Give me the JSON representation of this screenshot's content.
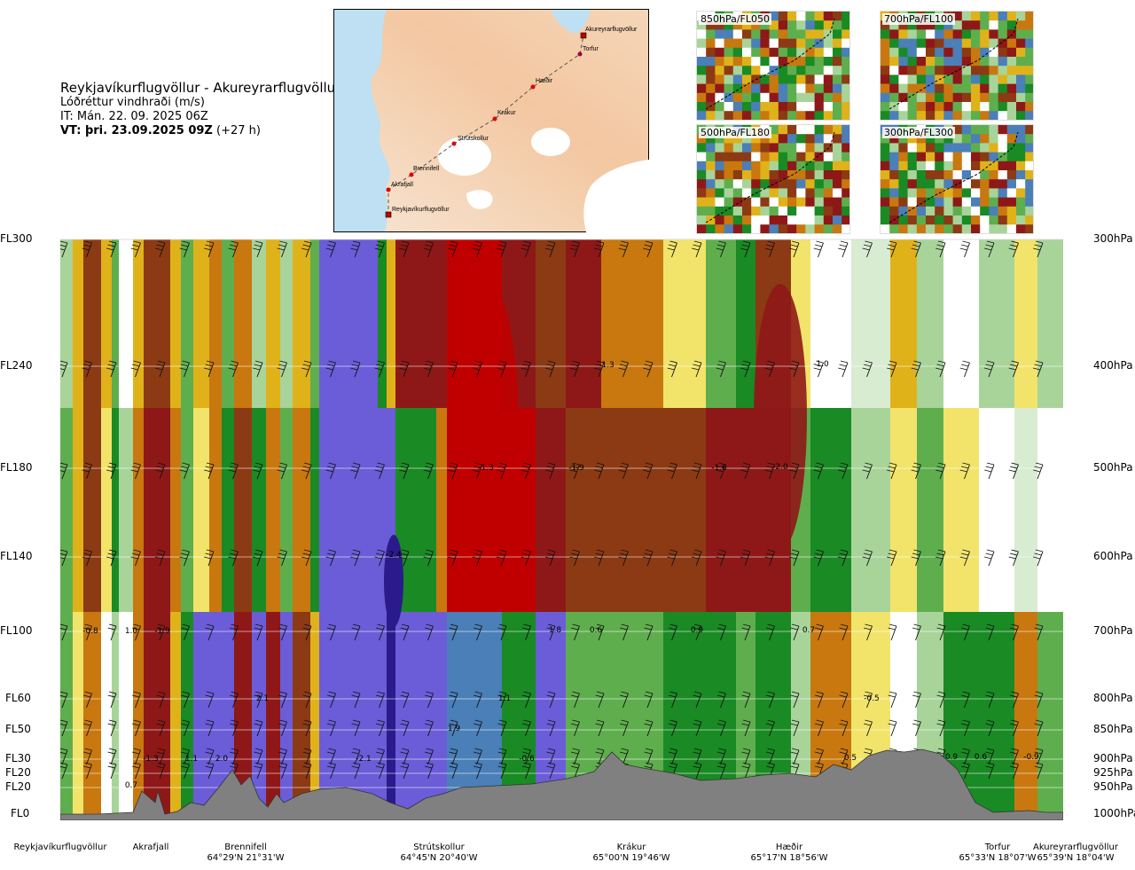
{
  "header": {
    "route": "Reykjavíkurflugvöllur - Akureyrarflugvöllur",
    "variable": "Lóðréttur vindhraði (m/s)",
    "init_time": "IT: Mán. 22. 09. 2025 06Z",
    "valid_time_bold": "VT: þri. 23.09.2025 09Z",
    "valid_time_offset": " (+27 h)"
  },
  "route_map": {
    "places": [
      "Akureyrarflugvöllur",
      "Torfur",
      "Hæðir",
      "Krákur",
      "Strútskollur",
      "Brennifell",
      "Akrafjall",
      "Reykjavíkurflugvöllur"
    ]
  },
  "mini_maps": [
    {
      "label": "850hPa/FL050"
    },
    {
      "label": "700hPa/FL100"
    },
    {
      "label": "500hPa/FL180"
    },
    {
      "label": "300hPa/FL300"
    }
  ],
  "chart_data": {
    "type": "heatmap",
    "title": "Lóðréttur vindhraði (m/s)",
    "levels_fl": [
      "FL300",
      "FL240",
      "FL180",
      "FL140",
      "FL100",
      "FL60",
      "FL50",
      "FL30",
      "FL20",
      "FL20",
      "FL0"
    ],
    "levels_hpa": [
      "300hPa",
      "400hPa",
      "500hPa",
      "600hPa",
      "700hPa",
      "800hPa",
      "850hPa",
      "900hPa",
      "925hPa",
      "950hPa",
      "1000hPa"
    ],
    "level_hpa_values": [
      300,
      400,
      500,
      600,
      700,
      800,
      850,
      900,
      925,
      950,
      1000
    ],
    "locations": [
      {
        "name": "Reykjavíkurflugvöllur",
        "coord": ""
      },
      {
        "name": "Akrafjall",
        "coord": ""
      },
      {
        "name": "Brennifell",
        "coord": "64°29'N 21°31'W"
      },
      {
        "name": "Strútskollur",
        "coord": "64°45'N 20°40'W"
      },
      {
        "name": "Krákur",
        "coord": "65°00'N 19°46'W"
      },
      {
        "name": "Hæðir",
        "coord": "65°17'N 18°56'W"
      },
      {
        "name": "Torfur",
        "coord": "65°33'N 18°07'W"
      },
      {
        "name": "Akureyrarflugvöllur",
        "coord": "65°39'N 18°04'W"
      }
    ],
    "annotations": [
      "-1.3",
      "-1.0",
      "-1.3",
      "-1.9",
      "-1.6",
      "-2.0",
      "-0.8",
      "1.0",
      "-1.9",
      "1.8",
      "0.6",
      "0.9",
      "0.7",
      "2.1",
      "1.1",
      "1.9",
      "-0.5",
      "-1.3",
      "1.1",
      "2.0",
      "-2.1",
      "-0.6",
      "0.5",
      "0.9",
      "0.6",
      "-0.9",
      "0.7",
      "-2.4"
    ],
    "ylim_hpa": [
      1000,
      300
    ],
    "colors": {
      "strong_down": "#c00000",
      "down2": "#8e1818",
      "down3": "#8c3a14",
      "down4": "#c8780f",
      "down5": "#e0b21a",
      "down6": "#f2e46a",
      "neutral": "#ffffff",
      "up1": "#d8ecd2",
      "up2": "#a8d49a",
      "up3": "#5fae4e",
      "up4": "#1a8a24",
      "up5": "#4a7fb8",
      "up6": "#6b5cd8",
      "strong_up": "#2a1a8c",
      "terrain": "#808080"
    }
  }
}
